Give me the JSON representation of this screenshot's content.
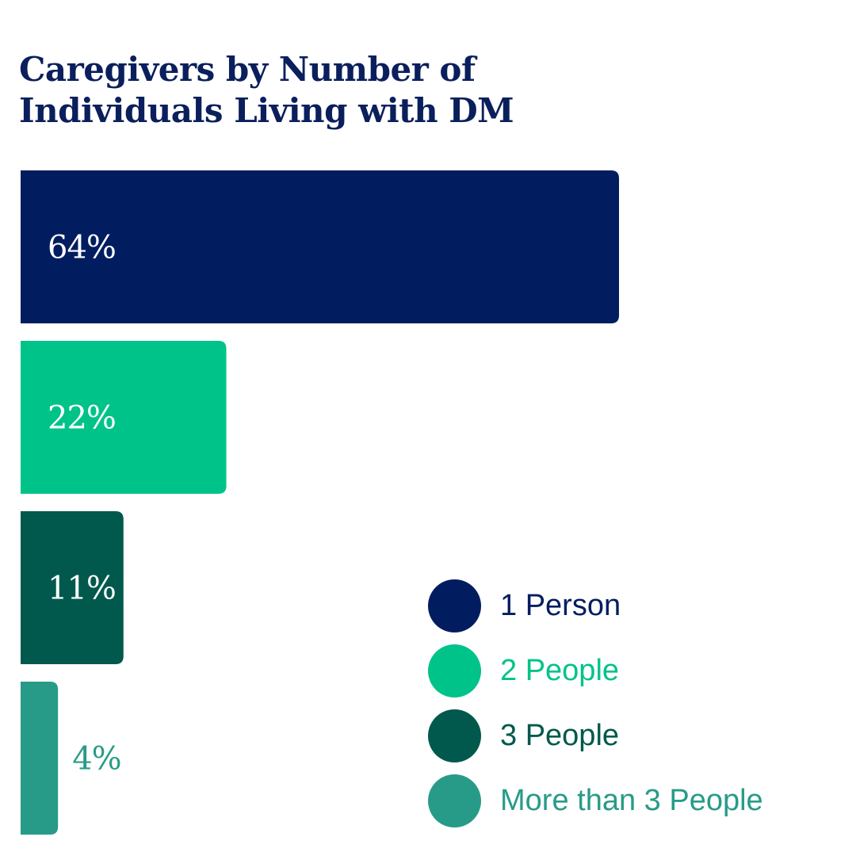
{
  "chart_data": {
    "type": "bar",
    "orientation": "horizontal",
    "title": "Caregivers by Number of Individuals Living with DM",
    "categories": [
      "1 Person",
      "2 People",
      "3 People",
      "More than 3 People"
    ],
    "values": [
      64,
      22,
      11,
      4
    ],
    "data_labels": [
      "64%",
      "22%",
      "11%",
      "4%"
    ],
    "colors": [
      "#021d5f",
      "#00c389",
      "#00594c",
      "#279b88"
    ],
    "xlim": [
      0,
      64
    ],
    "grid": false,
    "legend_position": "bottom-right"
  }
}
